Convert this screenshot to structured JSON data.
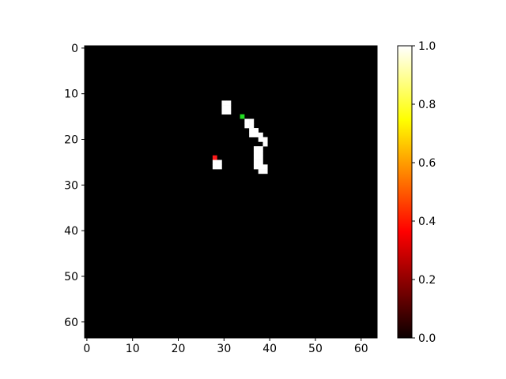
{
  "chart_data": {
    "type": "heatmap",
    "colormap": "hot",
    "grid": false,
    "legend": "colorbar-right",
    "x_range": [
      -0.5,
      63.5
    ],
    "y_range": [
      -0.5,
      63.5
    ],
    "y_axis_inverted": true,
    "x_ticks": [
      "0",
      "10",
      "20",
      "30",
      "40",
      "50",
      "60"
    ],
    "y_ticks": [
      "0",
      "10",
      "20",
      "30",
      "40",
      "50",
      "60"
    ],
    "colorbar": {
      "range": [
        0.0,
        1.0
      ],
      "ticks": [
        "0.0",
        "0.2",
        "0.4",
        "0.6",
        "0.8",
        "1.0"
      ]
    },
    "background_value": 0.0,
    "cells": [
      {
        "x": 30,
        "y": 12,
        "value": 1.0
      },
      {
        "x": 31,
        "y": 12,
        "value": 1.0
      },
      {
        "x": 30,
        "y": 13,
        "value": 1.0
      },
      {
        "x": 31,
        "y": 13,
        "value": 1.0
      },
      {
        "x": 30,
        "y": 14,
        "value": 1.0
      },
      {
        "x": 31,
        "y": 14,
        "value": 1.0
      },
      {
        "x": 35,
        "y": 16,
        "value": 1.0
      },
      {
        "x": 36,
        "y": 16,
        "value": 1.0
      },
      {
        "x": 35,
        "y": 17,
        "value": 1.0
      },
      {
        "x": 36,
        "y": 17,
        "value": 1.0
      },
      {
        "x": 36,
        "y": 18,
        "value": 1.0
      },
      {
        "x": 37,
        "y": 18,
        "value": 1.0
      },
      {
        "x": 36,
        "y": 19,
        "value": 1.0
      },
      {
        "x": 37,
        "y": 19,
        "value": 1.0
      },
      {
        "x": 38,
        "y": 19,
        "value": 1.0
      },
      {
        "x": 38,
        "y": 20,
        "value": 1.0
      },
      {
        "x": 39,
        "y": 20,
        "value": 1.0
      },
      {
        "x": 39,
        "y": 21,
        "value": 1.0
      },
      {
        "x": 37,
        "y": 22,
        "value": 1.0
      },
      {
        "x": 38,
        "y": 22,
        "value": 1.0
      },
      {
        "x": 37,
        "y": 23,
        "value": 1.0
      },
      {
        "x": 38,
        "y": 23,
        "value": 1.0
      },
      {
        "x": 37,
        "y": 24,
        "value": 1.0
      },
      {
        "x": 38,
        "y": 24,
        "value": 1.0
      },
      {
        "x": 37,
        "y": 25,
        "value": 1.0
      },
      {
        "x": 38,
        "y": 25,
        "value": 1.0
      },
      {
        "x": 28,
        "y": 25,
        "value": 1.0
      },
      {
        "x": 29,
        "y": 25,
        "value": 1.0
      },
      {
        "x": 28,
        "y": 26,
        "value": 1.0
      },
      {
        "x": 29,
        "y": 26,
        "value": 1.0
      },
      {
        "x": 37,
        "y": 26,
        "value": 1.0
      },
      {
        "x": 38,
        "y": 26,
        "value": 1.0
      },
      {
        "x": 39,
        "y": 26,
        "value": 1.0
      },
      {
        "x": 38,
        "y": 27,
        "value": 1.0
      },
      {
        "x": 39,
        "y": 27,
        "value": 1.0
      }
    ],
    "markers": [
      {
        "x": 34,
        "y": 15,
        "color": "#22dd22",
        "name": "green-marker"
      },
      {
        "x": 28,
        "y": 24,
        "color": "#ff1a1a",
        "name": "red-marker"
      }
    ],
    "colors": {
      "background": "#000000",
      "foreground": "#ffffff",
      "hot_stops": [
        "#0b0000",
        "#ff0000",
        "#ffff00",
        "#ffffff"
      ]
    }
  }
}
